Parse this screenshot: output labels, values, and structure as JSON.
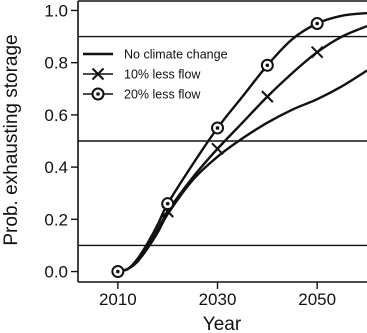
{
  "chart_data": {
    "type": "line",
    "title": "",
    "xlabel": "Year",
    "ylabel": "Prob. exhausting storage",
    "xlim": [
      2002,
      2060
    ],
    "ylim": [
      -0.04,
      1.04
    ],
    "xticks": [
      2010,
      2030,
      2050
    ],
    "yticks": [
      0.0,
      0.2,
      0.4,
      0.6,
      0.8,
      1.0
    ],
    "ytick_labels": [
      "0.0",
      "0.2",
      "0.4",
      "0.6",
      "0.8",
      "1.0"
    ],
    "xtick_labels": [
      "2010",
      "2030",
      "2050"
    ],
    "reference_lines_y": [
      0.1,
      0.5,
      0.9
    ],
    "grid": false,
    "legend_position": "top-right",
    "series": [
      {
        "name": "No climate change",
        "marker": "none",
        "x": [
          2010,
          2012,
          2014,
          2016,
          2018,
          2020,
          2025,
          2030,
          2035,
          2040,
          2045,
          2050,
          2055,
          2060
        ],
        "y": [
          0.0,
          0.01,
          0.04,
          0.09,
          0.15,
          0.22,
          0.35,
          0.44,
          0.51,
          0.57,
          0.62,
          0.66,
          0.71,
          0.77
        ]
      },
      {
        "name": "10% less flow",
        "marker": "x",
        "x": [
          2010,
          2012,
          2014,
          2016,
          2018,
          2020,
          2025,
          2030,
          2035,
          2040,
          2045,
          2050,
          2055,
          2060
        ],
        "y": [
          0.0,
          0.01,
          0.04,
          0.1,
          0.16,
          0.23,
          0.36,
          0.47,
          0.57,
          0.67,
          0.76,
          0.84,
          0.9,
          0.94
        ],
        "marker_x": [
          2020,
          2030,
          2040,
          2050
        ],
        "marker_y": [
          0.23,
          0.47,
          0.67,
          0.84
        ]
      },
      {
        "name": "20% less flow",
        "marker": "circle-dot",
        "x": [
          2010,
          2012,
          2014,
          2016,
          2018,
          2020,
          2025,
          2030,
          2035,
          2040,
          2045,
          2050,
          2055,
          2060
        ],
        "y": [
          0.0,
          0.01,
          0.05,
          0.11,
          0.18,
          0.26,
          0.41,
          0.55,
          0.67,
          0.79,
          0.89,
          0.95,
          0.98,
          0.99
        ],
        "marker_x": [
          2010,
          2020,
          2030,
          2040,
          2050
        ],
        "marker_y": [
          0.0,
          0.26,
          0.55,
          0.79,
          0.95
        ]
      }
    ],
    "colors": {
      "lines": "#111111",
      "background": "#ffffff"
    }
  }
}
